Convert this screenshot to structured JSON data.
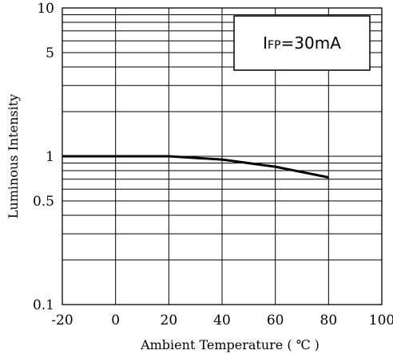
{
  "chart_data": {
    "type": "line",
    "xlabel": "Ambient Temperature ( ℃ )",
    "ylabel": "Luminous Intensity",
    "xlim": [
      -20,
      100
    ],
    "ylim": [
      0.1,
      10
    ],
    "yscale": "log",
    "grid": true,
    "x_ticks": [
      -20,
      0,
      20,
      40,
      60,
      80,
      100
    ],
    "x_tick_labels": [
      "-20",
      "0",
      "20",
      "40",
      "60",
      "80",
      "100"
    ],
    "y_tick_values": [
      0.1,
      0.5,
      1,
      5,
      10
    ],
    "y_tick_labels": [
      "0.1",
      "0.5",
      "1",
      "5",
      "10"
    ],
    "series": [
      {
        "x": [
          -20,
          0,
          20,
          40,
          60,
          80
        ],
        "y": [
          1.0,
          1.0,
          1.0,
          0.95,
          0.85,
          0.72
        ]
      }
    ],
    "annotation": {
      "prefix": "I",
      "subscript": "FP",
      "rest": "=30mA"
    }
  }
}
